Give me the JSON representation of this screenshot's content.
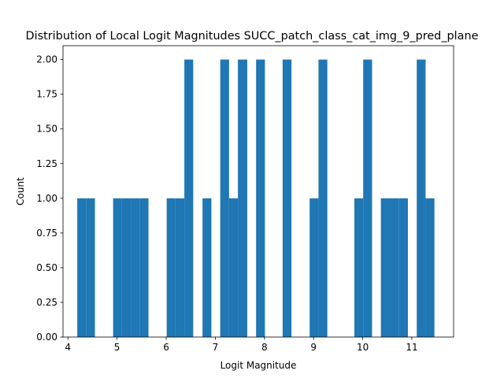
{
  "chart_data": {
    "type": "bar",
    "title": "Distribution of Local Logit Magnitudes SUCC_patch_class_cat_img_9_pred_plane",
    "xlabel": "Logit Magnitude",
    "ylabel": "Count",
    "xlim": [
      3.9,
      11.85
    ],
    "ylim": [
      0,
      2.1
    ],
    "xticks": [
      4,
      5,
      6,
      7,
      8,
      9,
      10,
      11
    ],
    "yticks": [
      0.0,
      0.25,
      0.5,
      0.75,
      1.0,
      1.25,
      1.5,
      1.75,
      2.0
    ],
    "ytick_labels": [
      "0.00",
      "0.25",
      "0.50",
      "0.75",
      "1.00",
      "1.25",
      "1.50",
      "1.75",
      "2.00"
    ],
    "grid": false,
    "bar_color": "#1f77b4",
    "bins": [
      {
        "x0": 4.19,
        "x1": 4.37,
        "count": 1
      },
      {
        "x0": 4.37,
        "x1": 4.55,
        "count": 1
      },
      {
        "x0": 4.92,
        "x1": 5.1,
        "count": 1
      },
      {
        "x0": 5.1,
        "x1": 5.28,
        "count": 1
      },
      {
        "x0": 5.28,
        "x1": 5.46,
        "count": 1
      },
      {
        "x0": 5.46,
        "x1": 5.64,
        "count": 1
      },
      {
        "x0": 6.01,
        "x1": 6.19,
        "count": 1
      },
      {
        "x0": 6.19,
        "x1": 6.37,
        "count": 1
      },
      {
        "x0": 6.37,
        "x1": 6.55,
        "count": 2
      },
      {
        "x0": 6.74,
        "x1": 6.92,
        "count": 1
      },
      {
        "x0": 7.1,
        "x1": 7.28,
        "count": 2
      },
      {
        "x0": 7.28,
        "x1": 7.46,
        "count": 1
      },
      {
        "x0": 7.46,
        "x1": 7.65,
        "count": 2
      },
      {
        "x0": 7.83,
        "x1": 8.01,
        "count": 2
      },
      {
        "x0": 8.37,
        "x1": 8.55,
        "count": 2
      },
      {
        "x0": 8.92,
        "x1": 9.1,
        "count": 1
      },
      {
        "x0": 9.1,
        "x1": 9.28,
        "count": 2
      },
      {
        "x0": 9.83,
        "x1": 10.01,
        "count": 1
      },
      {
        "x0": 10.01,
        "x1": 10.19,
        "count": 2
      },
      {
        "x0": 10.37,
        "x1": 10.56,
        "count": 1
      },
      {
        "x0": 10.56,
        "x1": 10.74,
        "count": 1
      },
      {
        "x0": 10.74,
        "x1": 10.92,
        "count": 1
      },
      {
        "x0": 11.1,
        "x1": 11.28,
        "count": 2
      },
      {
        "x0": 11.28,
        "x1": 11.46,
        "count": 1
      }
    ]
  }
}
